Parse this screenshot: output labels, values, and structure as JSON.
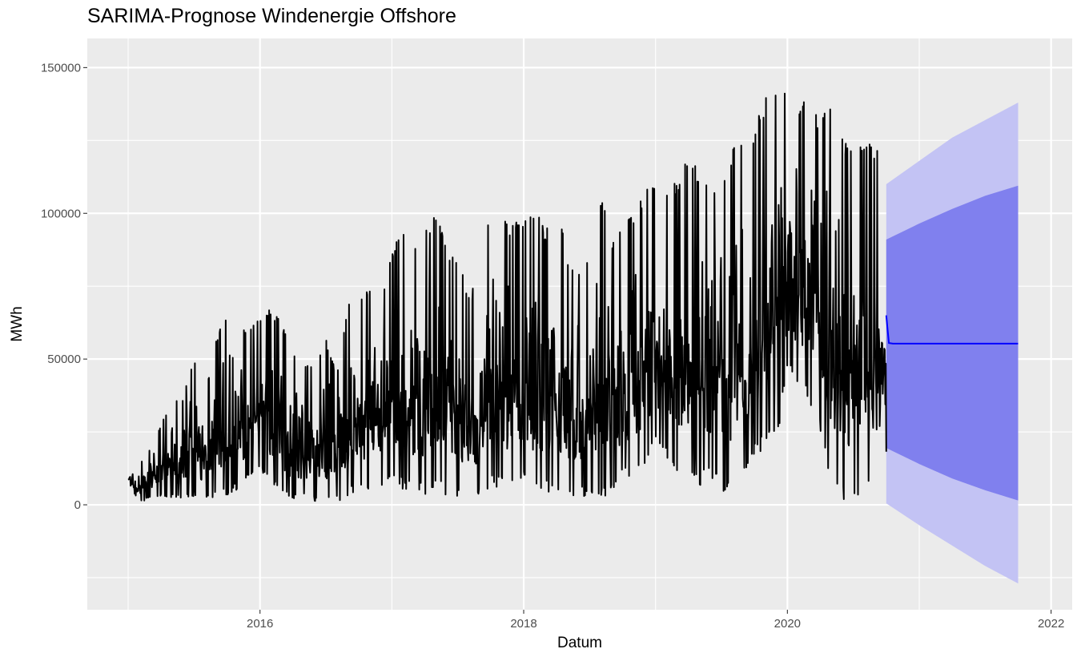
{
  "chart_data": {
    "type": "line",
    "title": "SARIMA-Prognose Windenergie Offshore",
    "xlabel": "Datum",
    "ylabel": "MWh",
    "xlim": [
      2014.69,
      2022.16
    ],
    "ylim": [
      -36000,
      160000
    ],
    "x_ticks": [
      "2016",
      "2018",
      "2020",
      "2022"
    ],
    "x_tick_values": [
      2016,
      2018,
      2020,
      2022
    ],
    "y_ticks": [
      "0",
      "50000",
      "100000",
      "150000"
    ],
    "y_tick_values": [
      0,
      50000,
      100000,
      150000
    ],
    "grid": true,
    "legend": "none",
    "colors": {
      "panel": "#ebebeb",
      "grid": "#ffffff",
      "observed_line": "#000000",
      "forecast_line": "#0000ff",
      "band_80": "#8080ee",
      "band_95": "#c3c3f4"
    },
    "observed_envelope": {
      "note_values": "daily series summarized as monthly low/high ranges (MWh)",
      "x": [
        2015.0,
        2015.08,
        2015.17,
        2015.25,
        2015.33,
        2015.42,
        2015.5,
        2015.58,
        2015.67,
        2015.75,
        2015.83,
        2015.92,
        2016.0,
        2016.08,
        2016.17,
        2016.25,
        2016.33,
        2016.42,
        2016.5,
        2016.58,
        2016.67,
        2016.75,
        2016.83,
        2016.92,
        2017.0,
        2017.08,
        2017.17,
        2017.25,
        2017.33,
        2017.42,
        2017.5,
        2017.58,
        2017.67,
        2017.75,
        2017.83,
        2017.92,
        2018.0,
        2018.08,
        2018.17,
        2018.25,
        2018.33,
        2018.42,
        2018.5,
        2018.58,
        2018.67,
        2018.75,
        2018.83,
        2018.92,
        2019.0,
        2019.08,
        2019.17,
        2019.25,
        2019.33,
        2019.42,
        2019.5,
        2019.58,
        2019.67,
        2019.75,
        2019.83,
        2019.92,
        2020.0,
        2020.08,
        2020.17,
        2020.25,
        2020.33,
        2020.42,
        2020.5,
        2020.58,
        2020.67,
        2020.75
      ],
      "low": [
        8000,
        1000,
        2000,
        3000,
        2000,
        2500,
        3000,
        2000,
        2500,
        3000,
        5000,
        10000,
        12000,
        8000,
        3000,
        1000,
        2000,
        1000,
        500,
        1000,
        3000,
        5000,
        4000,
        6000,
        8000,
        5000,
        4000,
        3000,
        6000,
        3000,
        2000,
        2000,
        2500,
        6000,
        5000,
        6000,
        8000,
        3000,
        4000,
        4000,
        3000,
        3000,
        2000,
        2000,
        4000,
        8000,
        10000,
        12000,
        20000,
        15000,
        10000,
        8000,
        5000,
        10000,
        3000,
        5000,
        8000,
        15000,
        20000,
        20000,
        45000,
        40000,
        35000,
        25000,
        8000,
        1000,
        2000,
        4000,
        6000,
        18000
      ],
      "high": [
        12000,
        14000,
        20000,
        28000,
        35000,
        37000,
        52000,
        38000,
        58000,
        67000,
        63000,
        60000,
        65000,
        68000,
        62000,
        52000,
        48000,
        50000,
        58000,
        45000,
        69000,
        73000,
        74000,
        73000,
        88000,
        96000,
        90000,
        94000,
        101000,
        88000,
        85000,
        72000,
        78000,
        105000,
        98000,
        96000,
        100000,
        102000,
        94000,
        106000,
        85000,
        82000,
        88000,
        107000,
        92000,
        96000,
        100000,
        108000,
        110000,
        108000,
        112000,
        122000,
        114000,
        108000,
        110000,
        122000,
        128000,
        130000,
        140000,
        145000,
        146000,
        138000,
        142000,
        130000,
        141000,
        128000,
        120000,
        126000,
        123000,
        113000
      ]
    },
    "forecast": {
      "x": [
        2020.75,
        2020.76,
        2020.77,
        2020.8,
        2021.0,
        2021.25,
        2021.5,
        2021.75
      ],
      "mean": [
        65000,
        60000,
        55500,
        55300,
        55300,
        55300,
        55300,
        55300
      ]
    },
    "interval_80": {
      "x": [
        2020.75,
        2021.0,
        2021.25,
        2021.5,
        2021.75
      ],
      "lower": [
        19500,
        14000,
        9000,
        5000,
        1500
      ],
      "upper": [
        91000,
        96500,
        101500,
        106000,
        109500
      ]
    },
    "interval_95": {
      "x": [
        2020.75,
        2021.0,
        2021.25,
        2021.5,
        2021.75
      ],
      "lower": [
        500,
        -7000,
        -14000,
        -21000,
        -27000
      ],
      "upper": [
        110000,
        118000,
        126000,
        132000,
        138000
      ]
    }
  }
}
